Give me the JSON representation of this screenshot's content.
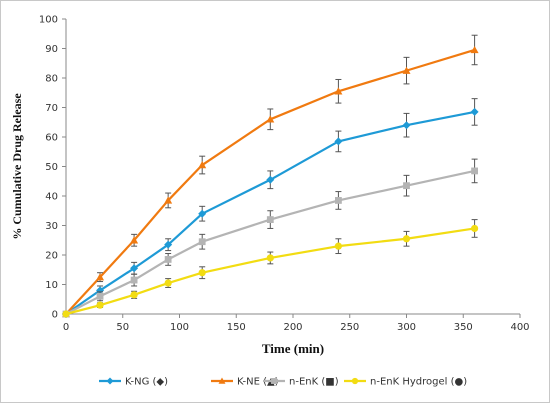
{
  "chart_data": {
    "type": "line",
    "title": "",
    "xlabel": "Time (min)",
    "ylabel": "% Cumulative Drug Release",
    "xlim": [
      0,
      400
    ],
    "ylim": [
      0,
      100
    ],
    "x_ticks": [
      0,
      50,
      100,
      150,
      200,
      250,
      300,
      350,
      400
    ],
    "y_ticks": [
      0,
      10,
      20,
      30,
      40,
      50,
      60,
      70,
      80,
      90,
      100
    ],
    "grid": false,
    "legend_position": "bottom",
    "error_bars": true,
    "x": [
      0,
      30,
      60,
      90,
      120,
      180,
      240,
      300,
      360
    ],
    "series": [
      {
        "name": "K-NG (◆)",
        "color": "#1e9ad6",
        "marker": "diamond",
        "values": [
          0,
          8,
          15.5,
          23.5,
          34,
          45.5,
          58.5,
          64,
          68.5
        ],
        "errors": [
          0,
          1.5,
          2,
          2,
          2.5,
          3,
          3.5,
          4,
          4.5
        ]
      },
      {
        "name": "K-NE (▲)",
        "color": "#f07a10",
        "marker": "triangle",
        "values": [
          0,
          12.5,
          25,
          38.5,
          50.5,
          66,
          75.5,
          82.5,
          89.5
        ],
        "errors": [
          0,
          1.5,
          2,
          2.5,
          3,
          3.5,
          4,
          4.5,
          5
        ]
      },
      {
        "name": "n-EnK (■)",
        "color": "#b4b4b4",
        "marker": "square",
        "values": [
          0,
          6,
          11.5,
          18.5,
          24.5,
          32,
          38.5,
          43.5,
          48.5
        ],
        "errors": [
          0,
          1.5,
          2,
          2,
          2.5,
          3,
          3,
          3.5,
          4
        ]
      },
      {
        "name": "n-EnK Hydrogel (●)",
        "color": "#f2dc12",
        "marker": "circle",
        "values": [
          0,
          3,
          6.5,
          10.5,
          14,
          19,
          23,
          25.5,
          29
        ],
        "errors": [
          0,
          0.8,
          1.2,
          1.5,
          2,
          2,
          2.5,
          2.5,
          3
        ]
      }
    ]
  }
}
